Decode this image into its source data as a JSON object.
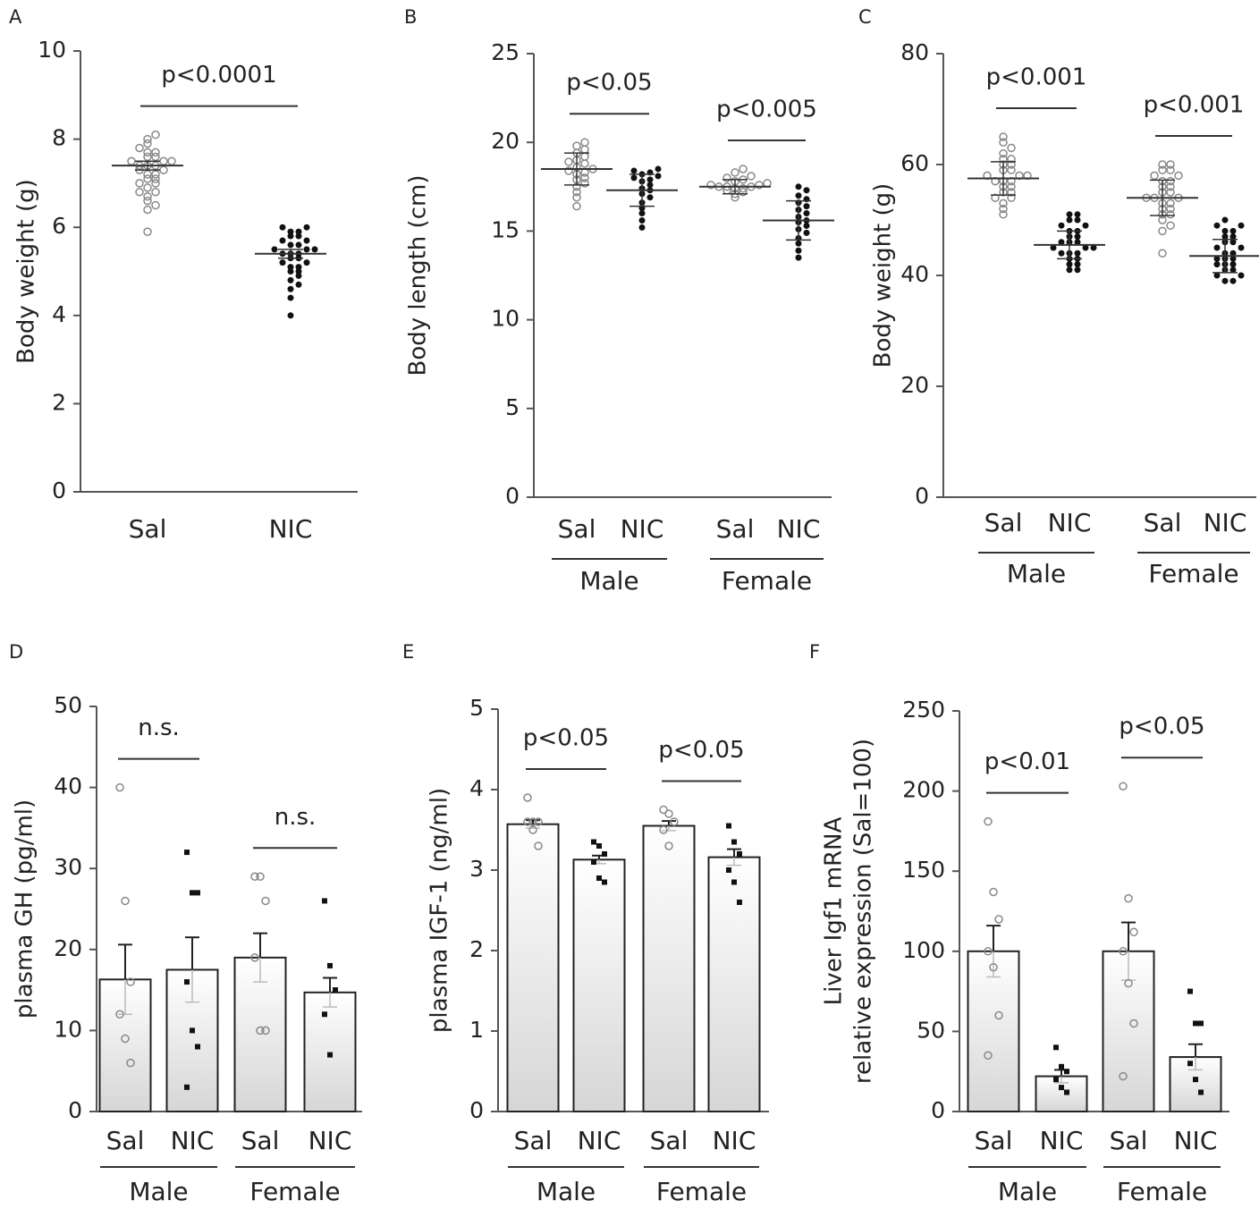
{
  "chart_data": [
    {
      "type": "dotplot",
      "panel": "A",
      "ylabel": [
        "Body weight (g)"
      ],
      "ylim": [
        0,
        10
      ],
      "yticks": [
        0,
        2,
        4,
        6,
        8,
        10
      ],
      "comparison": "p<0.0001",
      "groups": [
        {
          "category": "Sal",
          "mean": 7.4,
          "error": 0.1,
          "points": [
            5.9,
            6.4,
            6.5,
            6.6,
            6.7,
            6.8,
            6.8,
            6.9,
            7.0,
            7.0,
            7.1,
            7.1,
            7.2,
            7.2,
            7.3,
            7.3,
            7.4,
            7.4,
            7.4,
            7.5,
            7.5,
            7.5,
            7.6,
            7.6,
            7.7,
            7.7,
            7.8,
            7.9,
            8.0,
            8.1
          ]
        },
        {
          "category": "NIC",
          "mean": 5.4,
          "error": 0.1,
          "points": [
            4.0,
            4.4,
            4.6,
            4.7,
            4.8,
            4.9,
            5.0,
            5.0,
            5.1,
            5.1,
            5.2,
            5.2,
            5.3,
            5.3,
            5.4,
            5.4,
            5.4,
            5.5,
            5.5,
            5.5,
            5.6,
            5.6,
            5.7,
            5.7,
            5.8,
            5.8,
            5.9,
            5.9,
            6.0,
            6.0
          ]
        }
      ]
    },
    {
      "type": "dotplot",
      "panel": "B",
      "ylabel": [
        "Body length (cm)"
      ],
      "ylim": [
        0,
        25
      ],
      "yticks": [
        0,
        5,
        10,
        15,
        20,
        25
      ],
      "sexes": [
        {
          "name": "Male",
          "comparison": "p<0.05"
        },
        {
          "name": "Female",
          "comparison": "p<0.005"
        }
      ],
      "groups": [
        {
          "category": "Sal",
          "mean": 18.5,
          "error": 0.9,
          "points": [
            16.4,
            16.9,
            17.2,
            17.5,
            17.7,
            17.9,
            18.0,
            18.2,
            18.3,
            18.4,
            18.5,
            18.6,
            18.8,
            18.9,
            19.0,
            19.2,
            19.4,
            19.6,
            19.8,
            20.0
          ]
        },
        {
          "category": "NIC",
          "mean": 17.3,
          "error": 0.9,
          "points": [
            15.2,
            15.6,
            16.0,
            16.3,
            16.6,
            16.9,
            17.1,
            17.3,
            17.4,
            17.6,
            17.8,
            17.9,
            18.0,
            18.1,
            18.2,
            18.3,
            18.4,
            18.5
          ]
        },
        {
          "category": "Sal",
          "mean": 17.5,
          "error": 0.4,
          "points": [
            16.9,
            17.1,
            17.2,
            17.3,
            17.4,
            17.4,
            17.5,
            17.5,
            17.5,
            17.6,
            17.6,
            17.7,
            17.8,
            17.9,
            18.0,
            18.1,
            18.3,
            18.5
          ]
        },
        {
          "category": "NIC",
          "mean": 15.6,
          "error": 1.1,
          "points": [
            13.5,
            13.9,
            14.3,
            14.6,
            14.9,
            15.1,
            15.3,
            15.5,
            15.6,
            15.8,
            16.0,
            16.2,
            16.4,
            16.6,
            16.8,
            17.0,
            17.3,
            17.5
          ]
        }
      ]
    },
    {
      "type": "dotplot",
      "panel": "C",
      "ylabel": [
        "Body weight (g)"
      ],
      "ylim": [
        0,
        80
      ],
      "yticks": [
        0,
        20,
        40,
        60,
        80
      ],
      "sexes": [
        {
          "name": "Male",
          "comparison": "p<0.001"
        },
        {
          "name": "Female",
          "comparison": "p<0.001"
        }
      ],
      "groups": [
        {
          "category": "Sal",
          "mean": 57.5,
          "error": 3,
          "points": [
            51,
            52,
            53,
            54,
            54,
            55,
            55,
            56,
            56,
            57,
            57,
            57,
            58,
            58,
            58,
            59,
            59,
            60,
            60,
            61,
            61,
            62,
            63,
            64,
            65
          ]
        },
        {
          "category": "NIC",
          "mean": 45.5,
          "error": 2.5,
          "points": [
            41,
            41,
            42,
            42,
            43,
            43,
            44,
            44,
            44,
            45,
            45,
            45,
            46,
            46,
            46,
            47,
            47,
            48,
            48,
            49,
            49,
            50,
            50,
            51,
            51
          ]
        },
        {
          "category": "Sal",
          "mean": 54,
          "error": 3.2,
          "points": [
            44,
            48,
            49,
            50,
            51,
            51,
            52,
            52,
            53,
            53,
            54,
            54,
            54,
            55,
            55,
            56,
            56,
            57,
            57,
            58,
            58,
            59,
            59,
            60,
            60
          ]
        },
        {
          "category": "NIC",
          "mean": 43.5,
          "error": 3,
          "points": [
            39,
            39,
            40,
            40,
            41,
            41,
            42,
            42,
            42,
            43,
            43,
            43,
            44,
            44,
            45,
            45,
            46,
            46,
            47,
            47,
            48,
            48,
            49,
            49,
            50
          ]
        }
      ]
    },
    {
      "type": "bar",
      "panel": "D",
      "ylabel": [
        "plasma GH (pg/ml)"
      ],
      "ylim": [
        0,
        50
      ],
      "yticks": [
        0,
        10,
        20,
        30,
        40,
        50
      ],
      "sexes": [
        {
          "name": "Male",
          "comparison": "n.s."
        },
        {
          "name": "Female",
          "comparison": "n.s."
        }
      ],
      "groups": [
        {
          "category": "Sal",
          "mean": 16.3,
          "error": 4.3,
          "points": [
            40,
            26,
            16,
            12,
            9,
            6
          ]
        },
        {
          "category": "NIC",
          "mean": 17.5,
          "error": 4,
          "points": [
            32,
            27,
            27,
            16,
            10,
            8,
            3
          ]
        },
        {
          "category": "Sal",
          "mean": 19,
          "error": 3,
          "points": [
            29,
            29,
            26,
            19,
            10,
            10
          ]
        },
        {
          "category": "NIC",
          "mean": 14.7,
          "error": 1.8,
          "points": [
            26,
            18,
            15,
            12,
            7
          ]
        }
      ]
    },
    {
      "type": "bar",
      "panel": "E",
      "ylabel": [
        "plasma IGF-1 (ng/ml)"
      ],
      "ylim": [
        0,
        5
      ],
      "yticks": [
        0,
        1,
        2,
        3,
        4,
        5
      ],
      "sexes": [
        {
          "name": "Male",
          "comparison": "p<0.05"
        },
        {
          "name": "Female",
          "comparison": "p<0.05"
        }
      ],
      "groups": [
        {
          "category": "Sal",
          "mean": 3.57,
          "error": 0.05,
          "points": [
            3.9,
            3.6,
            3.6,
            3.6,
            3.5,
            3.3
          ]
        },
        {
          "category": "NIC",
          "mean": 3.13,
          "error": 0.05,
          "points": [
            3.35,
            3.3,
            3.2,
            3.1,
            2.9,
            2.85
          ]
        },
        {
          "category": "Sal",
          "mean": 3.55,
          "error": 0.06,
          "points": [
            3.75,
            3.7,
            3.6,
            3.5,
            3.3
          ]
        },
        {
          "category": "NIC",
          "mean": 3.16,
          "error": 0.1,
          "points": [
            3.55,
            3.35,
            3.2,
            3.0,
            2.85,
            2.6
          ]
        }
      ]
    },
    {
      "type": "bar",
      "panel": "F",
      "ylabel": [
        "Liver Igf1 mRNA",
        "relative expression (Sal=100)"
      ],
      "ylim": [
        0,
        250
      ],
      "yticks": [
        0,
        50,
        100,
        150,
        200,
        250
      ],
      "sexes": [
        {
          "name": "Male",
          "comparison": "p<0.01"
        },
        {
          "name": "Female",
          "comparison": "p<0.05"
        }
      ],
      "groups": [
        {
          "category": "Sal",
          "mean": 100,
          "error": 16,
          "points": [
            181,
            137,
            120,
            100,
            90,
            60,
            35
          ]
        },
        {
          "category": "NIC",
          "mean": 22,
          "error": 4,
          "points": [
            40,
            28,
            25,
            20,
            15,
            12
          ]
        },
        {
          "category": "Sal",
          "mean": 100,
          "error": 18,
          "points": [
            203,
            133,
            112,
            100,
            80,
            55,
            22
          ]
        },
        {
          "category": "NIC",
          "mean": 34,
          "error": 8,
          "points": [
            75,
            55,
            55,
            30,
            20,
            12
          ]
        }
      ]
    }
  ]
}
